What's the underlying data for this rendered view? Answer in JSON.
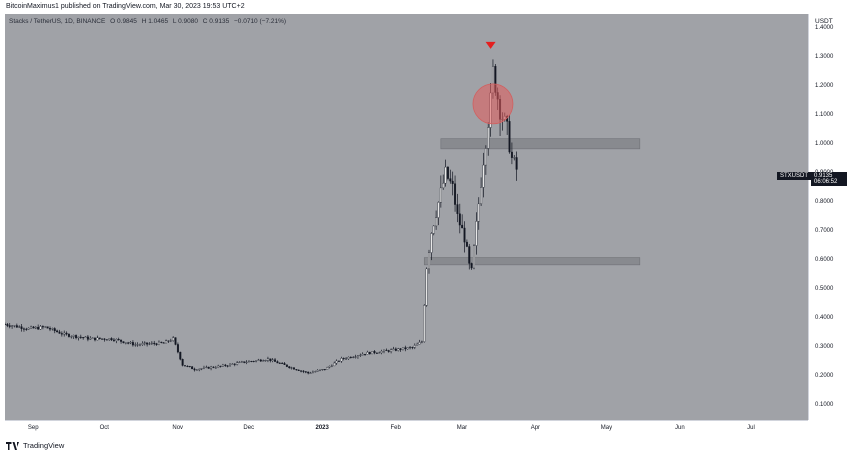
{
  "header": {
    "text": "BitcoinMaximus1 published on TradingView.com, Mar 30, 2023 19:53 UTC+2"
  },
  "legend": {
    "title": "Stacks / TetherUS, 1D, BINANCE",
    "o": "O 0.9845",
    "h": "H 1.0465",
    "l": "L 0.9080",
    "c": "C 0.9135",
    "chg": "−0.0710 (−7.21%)"
  },
  "price_axis": {
    "unit": "USDT",
    "ticks": [
      "1.4000",
      "1.3000",
      "1.2000",
      "1.1000",
      "1.0000",
      "0.9000",
      "0.8000",
      "0.7000",
      "0.6000",
      "0.5000",
      "0.4000",
      "0.3000",
      "0.2000",
      "0.1000"
    ]
  },
  "last_price": {
    "symbol": "STXUSDT",
    "price": "0.9135",
    "countdown": "06:06:52"
  },
  "time_axis": {
    "ticks": [
      {
        "label": "Sep",
        "year": false
      },
      {
        "label": "Oct",
        "year": false
      },
      {
        "label": "Nov",
        "year": false
      },
      {
        "label": "Dec",
        "year": false
      },
      {
        "label": "2023",
        "year": true
      },
      {
        "label": "Feb",
        "year": false
      },
      {
        "label": "Mar",
        "year": false
      },
      {
        "label": "Apr",
        "year": false
      },
      {
        "label": "May",
        "year": false
      },
      {
        "label": "Jun",
        "year": false
      },
      {
        "label": "Jul",
        "year": false
      }
    ]
  },
  "footer": {
    "brand": "TradingView"
  },
  "colors": {
    "plot_bg": "#a0a2a7",
    "candle": "#131722",
    "marker": "#e41f1f",
    "circle": "#e35b5b",
    "zone": "#84868b"
  },
  "chart_data": {
    "type": "candlestick",
    "symbol": "STXUSDT",
    "interval": "1D",
    "y_range": [
      0.05,
      1.45
    ],
    "x_range": [
      "2022-08-26",
      "2023-07-31"
    ],
    "grid": false,
    "close_series": [
      {
        "date": "2022-08-26",
        "close": 0.38
      },
      {
        "date": "2022-09-05",
        "close": 0.365
      },
      {
        "date": "2022-09-12",
        "close": 0.37
      },
      {
        "date": "2022-09-20",
        "close": 0.345
      },
      {
        "date": "2022-10-01",
        "close": 0.33
      },
      {
        "date": "2022-10-10",
        "close": 0.33
      },
      {
        "date": "2022-10-20",
        "close": 0.31
      },
      {
        "date": "2022-11-01",
        "close": 0.315
      },
      {
        "date": "2022-11-05",
        "close": 0.33
      },
      {
        "date": "2022-11-09",
        "close": 0.24
      },
      {
        "date": "2022-11-14",
        "close": 0.225
      },
      {
        "date": "2022-11-25",
        "close": 0.235
      },
      {
        "date": "2022-12-05",
        "close": 0.25
      },
      {
        "date": "2022-12-15",
        "close": 0.26
      },
      {
        "date": "2022-12-25",
        "close": 0.23
      },
      {
        "date": "2023-01-01",
        "close": 0.212
      },
      {
        "date": "2023-01-08",
        "close": 0.225
      },
      {
        "date": "2023-01-15",
        "close": 0.26
      },
      {
        "date": "2023-01-25",
        "close": 0.28
      },
      {
        "date": "2023-02-05",
        "close": 0.29
      },
      {
        "date": "2023-02-14",
        "close": 0.3
      },
      {
        "date": "2023-02-18",
        "close": 0.32
      },
      {
        "date": "2023-02-20",
        "close": 0.58
      },
      {
        "date": "2023-02-22",
        "close": 0.7
      },
      {
        "date": "2023-02-25",
        "close": 0.8
      },
      {
        "date": "2023-02-28",
        "close": 0.9
      },
      {
        "date": "2023-03-03",
        "close": 0.85
      },
      {
        "date": "2023-03-05",
        "close": 0.75
      },
      {
        "date": "2023-03-08",
        "close": 0.68
      },
      {
        "date": "2023-03-10",
        "close": 0.58
      },
      {
        "date": "2023-03-11",
        "close": 0.56
      },
      {
        "date": "2023-03-13",
        "close": 0.72
      },
      {
        "date": "2023-03-16",
        "close": 0.95
      },
      {
        "date": "2023-03-19",
        "close": 1.15
      },
      {
        "date": "2023-03-20",
        "close": 1.25
      },
      {
        "date": "2023-03-23",
        "close": 1.12
      },
      {
        "date": "2023-03-26",
        "close": 1.05
      },
      {
        "date": "2023-03-28",
        "close": 0.95
      },
      {
        "date": "2023-03-30",
        "close": 0.9135
      }
    ],
    "annotations": [
      {
        "type": "zone",
        "from": "2023-02-26",
        "to": "2023-05-21",
        "y_low": 0.985,
        "y_high": 1.02
      },
      {
        "type": "zone",
        "from": "2023-02-19",
        "to": "2023-05-21",
        "y_low": 0.585,
        "y_high": 0.61
      },
      {
        "type": "circle",
        "date": "2023-03-20",
        "y": 1.14
      },
      {
        "type": "arrow-down",
        "date": "2023-03-19",
        "y": 1.34
      }
    ]
  }
}
